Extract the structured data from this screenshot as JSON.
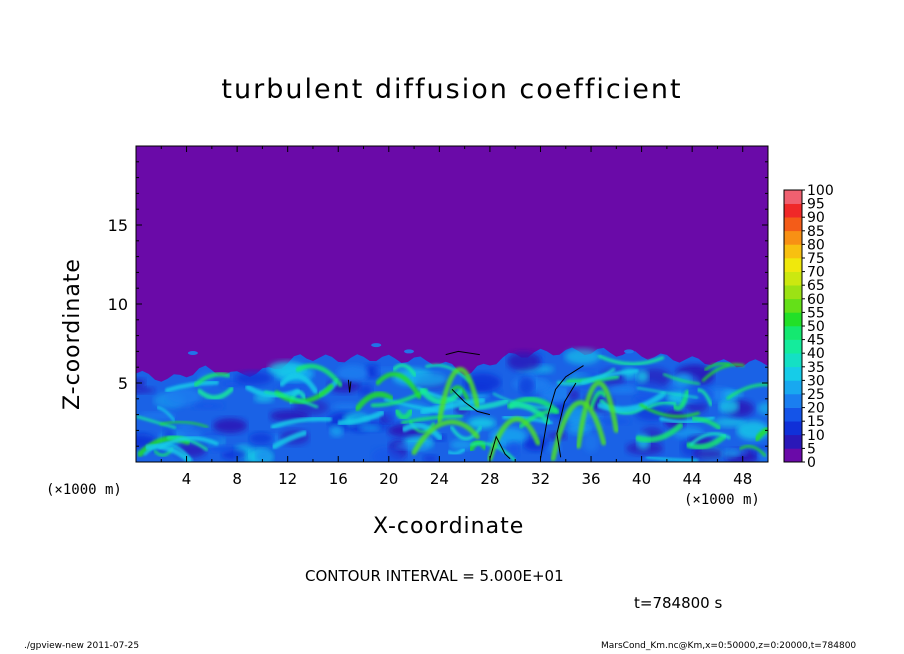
{
  "chart_data": {
    "type": "heatmap",
    "title": "turbulent diffusion coefficient",
    "xlabel": "X-coordinate",
    "ylabel": "Z-coordinate",
    "x_unit_left": "(×1000 m)",
    "x_unit_right": "(×1000 m)",
    "xlim": [
      0,
      50
    ],
    "ylim": [
      0,
      20
    ],
    "xticks": [
      4,
      8,
      12,
      16,
      20,
      24,
      28,
      32,
      36,
      40,
      44,
      48
    ],
    "xtick_labels": [
      "4",
      "8",
      "12",
      "16",
      "20",
      "24",
      "28",
      "32",
      "36",
      "40",
      "44",
      "48"
    ],
    "yticks": [
      5,
      10,
      15
    ],
    "ytick_labels": [
      "5",
      "10",
      "15"
    ],
    "colorbar": {
      "levels": [
        0,
        5,
        10,
        15,
        20,
        25,
        30,
        35,
        40,
        45,
        50,
        55,
        60,
        65,
        70,
        75,
        80,
        85,
        90,
        95,
        100
      ],
      "labels": [
        "0",
        "5",
        "10",
        "15",
        "20",
        "25",
        "30",
        "35",
        "40",
        "45",
        "50",
        "55",
        "60",
        "65",
        "70",
        "75",
        "80",
        "85",
        "90",
        "95",
        "100"
      ],
      "colors": [
        "#6a0aa8",
        "#2a18b8",
        "#1030d8",
        "#1454e8",
        "#1a7ef0",
        "#18a8f0",
        "#16cce8",
        "#14e0c4",
        "#14ec9c",
        "#14e870",
        "#22e028",
        "#64e018",
        "#9ce214",
        "#cce810",
        "#f0e80c",
        "#f8c010",
        "#f89014",
        "#f45c18",
        "#f02828",
        "#f06070"
      ]
    },
    "background_color": "#6a0aa8",
    "boundary_layer_top_km": [
      5.6,
      5.2,
      5.9,
      5.5,
      5.8,
      6.7,
      6.5,
      6.6,
      6.5,
      6.4,
      5.6,
      6.6,
      6.9,
      7.0,
      7.0,
      6.8,
      6.6,
      6.4,
      6.2,
      6.3
    ],
    "contour_interval": "CONTOUR INTERVAL = 5.000E+01",
    "time_label": "t=784800 s"
  },
  "footer": {
    "left": "./gpview-new   2011-07-25",
    "right": "MarsCond_Km.nc@Km,x=0:50000,z=0:20000,t=784800"
  }
}
